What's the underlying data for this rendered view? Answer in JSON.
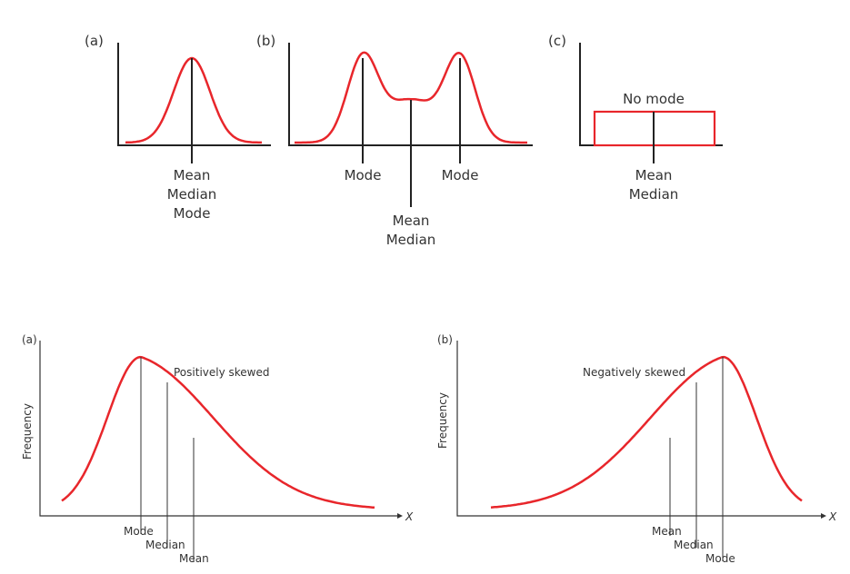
{
  "colors": {
    "curve": "#e8262b",
    "axis": "#222222",
    "text": "#333333"
  },
  "top_row": {
    "panel_a": {
      "tag": "(a)",
      "labels": [
        "Mean",
        "Median",
        "Mode"
      ]
    },
    "panel_b": {
      "tag": "(b)",
      "mode_left": "Mode",
      "mode_right": "Mode",
      "labels": [
        "Mean",
        "Median"
      ]
    },
    "panel_c": {
      "tag": "(c)",
      "caption": "No mode",
      "labels": [
        "Mean",
        "Median"
      ]
    }
  },
  "bottom_row": {
    "panel_a": {
      "tag": "(a)",
      "ylabel": "Frequency",
      "xlabel": "X",
      "caption": "Positively skewed",
      "mode": "Mode",
      "median": "Median",
      "mean": "Mean"
    },
    "panel_b": {
      "tag": "(b)",
      "ylabel": "Frequency",
      "xlabel": "X",
      "caption": "Negatively skewed",
      "mean": "Mean",
      "median": "Median",
      "mode": "Mode"
    }
  }
}
